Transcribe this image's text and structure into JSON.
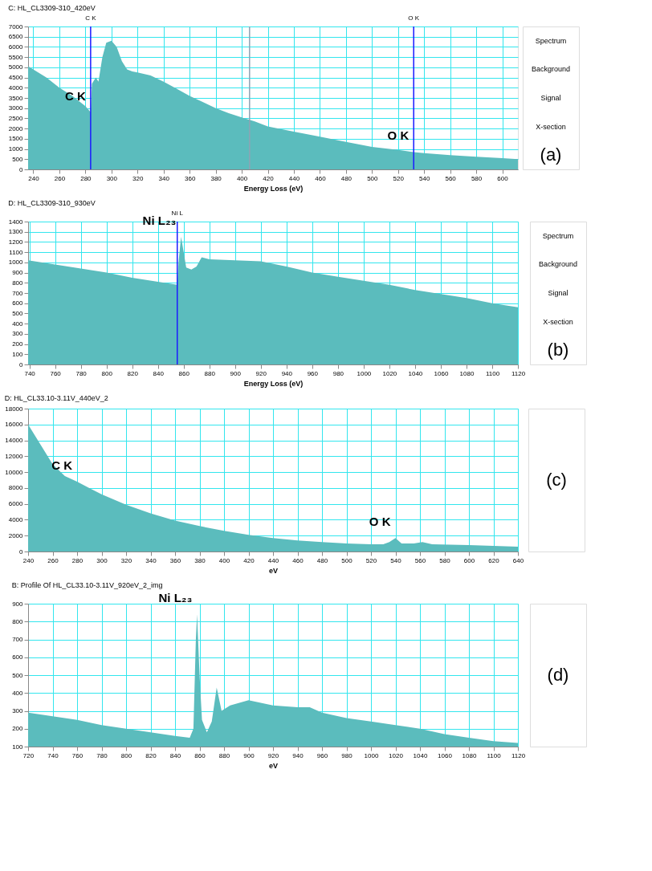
{
  "chart_data": [
    {
      "type": "area",
      "title": "C: HL_CL3309-310_420eV",
      "xlabel": "Energy Loss (eV)",
      "xlim": [
        236,
        612
      ],
      "xticks": [
        240,
        260,
        280,
        300,
        320,
        340,
        360,
        380,
        400,
        420,
        440,
        460,
        480,
        500,
        520,
        540,
        560,
        580,
        600
      ],
      "ylim": [
        0,
        7000
      ],
      "yticks": [
        0,
        500,
        1000,
        1500,
        2000,
        2500,
        3000,
        3500,
        4000,
        4500,
        5000,
        5500,
        6000,
        6500,
        7000
      ],
      "grid": true,
      "x": [
        236,
        240,
        250,
        260,
        270,
        280,
        284,
        285,
        288,
        290,
        293,
        296,
        300,
        304,
        308,
        312,
        316,
        320,
        330,
        340,
        350,
        360,
        370,
        380,
        390,
        400,
        410,
        420,
        440,
        460,
        480,
        500,
        520,
        532,
        540,
        560,
        580,
        600,
        612
      ],
      "series": [
        {
          "color": "#5bbcbd",
          "values": [
            5050,
            4900,
            4500,
            4000,
            3600,
            3100,
            2800,
            4200,
            4500,
            4300,
            5500,
            6200,
            6300,
            6000,
            5300,
            4900,
            4800,
            4750,
            4600,
            4300,
            3950,
            3600,
            3300,
            3000,
            2750,
            2550,
            2350,
            2100,
            1850,
            1600,
            1350,
            1100,
            950,
            850,
            800,
            700,
            620,
            550,
            500
          ]
        }
      ],
      "ref_lines": [
        {
          "axis": "x",
          "value": 284,
          "label": "C K",
          "color": "#1a1aff"
        },
        {
          "axis": "x",
          "value": 532,
          "label": "O K",
          "color": "#1a1aff"
        },
        {
          "axis": "x",
          "value": 406,
          "label": null,
          "color": "#8fa3b5"
        }
      ],
      "annotations": [
        {
          "text": "C K",
          "x": 284,
          "y": 2800
        },
        {
          "text": "O K",
          "x": 532,
          "y": 850
        },
        "Spectrum",
        "Background",
        "Signal",
        "X-section",
        "(a)"
      ]
    },
    {
      "type": "area",
      "title": "D: HL_CL3309-310_930eV",
      "xlabel": "Energy Loss (eV)",
      "xlim": [
        739,
        1120
      ],
      "xticks": [
        740,
        760,
        780,
        800,
        820,
        840,
        860,
        880,
        900,
        920,
        940,
        960,
        980,
        1000,
        1020,
        1040,
        1060,
        1080,
        1100,
        1120
      ],
      "ylim": [
        0,
        1400
      ],
      "yticks": [
        0,
        100,
        200,
        300,
        400,
        500,
        600,
        700,
        800,
        900,
        1000,
        1100,
        1200,
        1300,
        1400
      ],
      "grid": true,
      "x": [
        739,
        760,
        780,
        800,
        820,
        840,
        850,
        855,
        856,
        858,
        860,
        862,
        866,
        870,
        874,
        880,
        900,
        920,
        940,
        960,
        980,
        1000,
        1020,
        1040,
        1060,
        1080,
        1100,
        1120
      ],
      "series": [
        {
          "color": "#5bbcbd",
          "values": [
            1020,
            980,
            940,
            900,
            850,
            810,
            790,
            780,
            1000,
            1250,
            1100,
            950,
            930,
            960,
            1050,
            1030,
            1020,
            1010,
            960,
            900,
            860,
            820,
            780,
            730,
            690,
            650,
            600,
            560
          ]
        }
      ],
      "ref_lines": [
        {
          "axis": "x",
          "value": 855,
          "label": "Ni L",
          "color": "#1a1aff"
        }
      ],
      "annotations": [
        {
          "text": "Ni L₂₃",
          "x": 858,
          "y": 1250
        },
        "Spectrum",
        "Background",
        "Signal",
        "X-section",
        "(b)"
      ]
    },
    {
      "type": "area",
      "title": "D: HL_CL33.10-3.11V_440eV_2",
      "xlabel": "eV",
      "xlim": [
        240,
        640
      ],
      "xticks": [
        240,
        260,
        280,
        300,
        320,
        340,
        360,
        380,
        400,
        420,
        440,
        460,
        480,
        500,
        520,
        540,
        560,
        580,
        600,
        620,
        640
      ],
      "ylim": [
        0,
        18000
      ],
      "yticks": [
        0,
        2000,
        4000,
        6000,
        8000,
        10000,
        12000,
        14000,
        16000,
        18000
      ],
      "grid": true,
      "x": [
        240,
        250,
        260,
        270,
        280,
        290,
        300,
        320,
        340,
        360,
        380,
        400,
        420,
        440,
        460,
        480,
        500,
        520,
        530,
        535,
        540,
        545,
        555,
        562,
        570,
        600,
        620,
        640
      ],
      "series": [
        {
          "color": "#5bbcbd",
          "values": [
            16000,
            13500,
            11000,
            9500,
            8800,
            8000,
            7200,
            5900,
            4800,
            3900,
            3200,
            2600,
            2100,
            1700,
            1400,
            1200,
            1000,
            900,
            900,
            1200,
            1700,
            1000,
            1000,
            1200,
            900,
            800,
            700,
            600
          ]
        }
      ],
      "annotations": [
        {
          "text": "C K",
          "x": 280,
          "y": 8800
        },
        {
          "text": "O K",
          "x": 540,
          "y": 1700
        },
        "(c)"
      ]
    },
    {
      "type": "area",
      "title": "B: Profile Of HL_CL33.10-3.11V_920eV_2_img",
      "xlabel": "eV",
      "xlim": [
        720,
        1120
      ],
      "xticks": [
        720,
        740,
        760,
        780,
        800,
        820,
        840,
        860,
        880,
        900,
        920,
        940,
        960,
        980,
        1000,
        1020,
        1040,
        1060,
        1080,
        1100,
        1120
      ],
      "ylim": [
        100,
        900
      ],
      "yticks": [
        100,
        200,
        300,
        400,
        500,
        600,
        700,
        800,
        900
      ],
      "grid": true,
      "x": [
        720,
        740,
        760,
        780,
        800,
        820,
        840,
        852,
        855,
        857,
        858,
        860,
        862,
        866,
        870,
        874,
        878,
        885,
        900,
        920,
        940,
        950,
        960,
        980,
        1000,
        1020,
        1040,
        1060,
        1080,
        1100,
        1120
      ],
      "series": [
        {
          "color": "#5bbcbd",
          "values": [
            290,
            270,
            250,
            220,
            200,
            180,
            160,
            150,
            200,
            700,
            840,
            500,
            250,
            180,
            240,
            430,
            300,
            330,
            360,
            330,
            320,
            320,
            290,
            260,
            240,
            220,
            200,
            170,
            150,
            130,
            120
          ]
        }
      ],
      "annotations": [
        {
          "text": "Ni L₂₃",
          "x": 858,
          "y": 840
        },
        "(d)"
      ]
    }
  ]
}
